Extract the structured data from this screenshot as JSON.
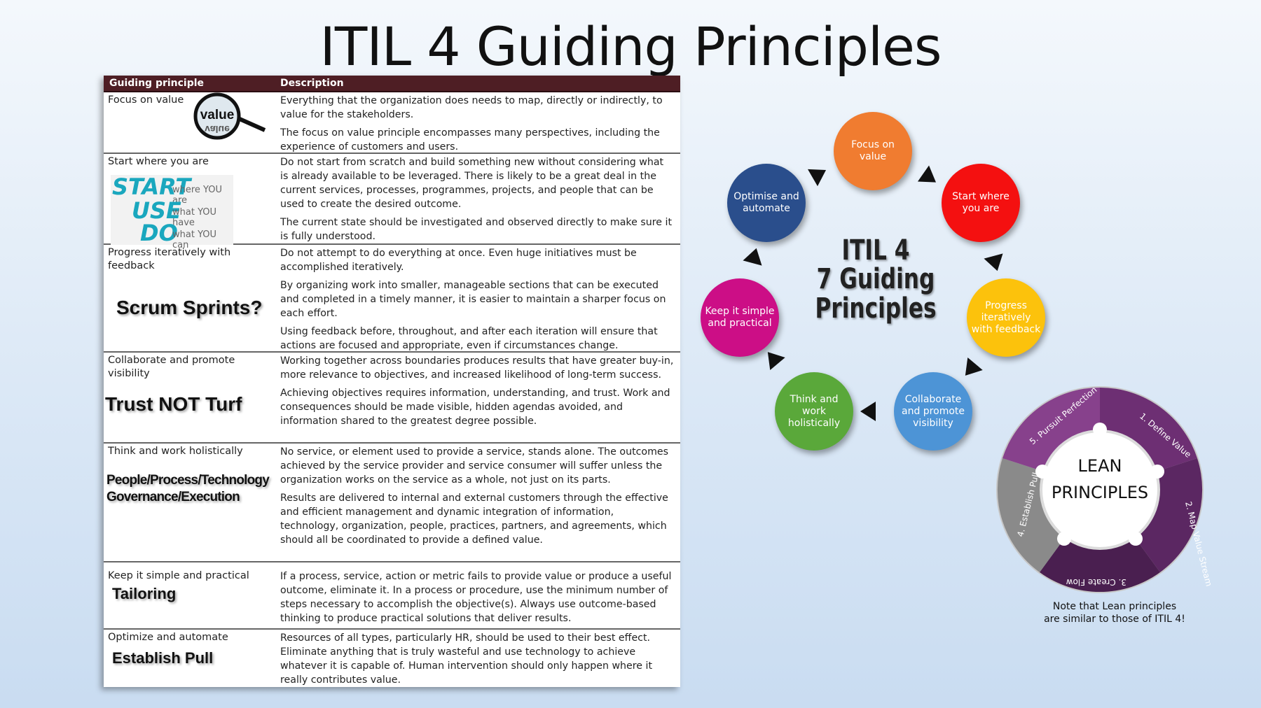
{
  "title": "ITIL 4 Guiding Principles",
  "table": {
    "header": {
      "col1": "Guiding principle",
      "col2": "Description"
    },
    "rows": [
      {
        "principle": "Focus on value",
        "image_text": "value",
        "desc": [
          "Everything that the organization does needs to map, directly or indirectly, to value for the stakeholders.",
          "The focus on value principle encompasses many perspectives, including the experience of customers and users."
        ]
      },
      {
        "principle": "Start where you are",
        "image_lines": [
          {
            "big": "START",
            "small": "where YOU are"
          },
          {
            "big": "USE",
            "small": "what YOU have"
          },
          {
            "big": "DO",
            "small": "what YOU can"
          }
        ],
        "desc": [
          "Do not start from scratch and build something new without considering what is already available to be leveraged. There is likely to be a great deal in the current services, processes, programmes, projects, and people that can be used to create the desired outcome.",
          "The current state should be investigated and observed directly to make sure it is fully understood."
        ]
      },
      {
        "principle": "Progress iteratively with feedback",
        "image_text": "Scrum Sprints?",
        "desc": [
          "Do not attempt to do everything at once. Even huge initiatives must be accomplished iteratively.",
          "By organizing work into smaller, manageable sections that can be executed and completed in a timely manner, it is easier to maintain a sharper focus on each effort.",
          "Using feedback before, throughout, and after each iteration will ensure that actions are focused and appropriate, even if circumstances change."
        ]
      },
      {
        "principle": "Collaborate and promote visibility",
        "image_text": "Trust NOT Turf",
        "desc": [
          "Working together across boundaries produces results that have greater buy-in, more relevance to objectives, and increased likelihood of long-term success.",
          "Achieving objectives requires information, understanding, and trust. Work and consequences should be made visible, hidden agendas avoided, and information shared to the greatest degree possible."
        ]
      },
      {
        "principle": "Think and work holistically",
        "image_text": "People/Process/Technology Governance/Execution",
        "image_lines": [
          "People/Process/Technology",
          "Governance/Execution"
        ],
        "desc": [
          "No service, or element used to provide a service, stands alone. The outcomes achieved by the service provider and service consumer will suffer unless the organization works on the service as a whole, not just on its parts.",
          "Results are delivered to internal and external customers through the effective and efficient management and dynamic integration of information, technology, organization, people, practices, partners, and agreements, which should all be coordinated to provide a defined value."
        ]
      },
      {
        "principle": "Keep it simple and practical",
        "image_text": "Tailoring",
        "desc": [
          "If a process, service, action or metric fails to provide value or produce a useful outcome, eliminate it. In a process or procedure, use the minimum number of steps necessary to accomplish the objective(s). Always use outcome-based thinking to produce practical solutions that deliver results."
        ]
      },
      {
        "principle": "Optimize and automate",
        "image_text": "Establish Pull",
        "desc": [
          "Resources of all types, particularly HR, should be used to their best effect. Eliminate anything that is truly wasteful and use technology to achieve whatever it is capable of. Human intervention should only happen where it really contributes value."
        ]
      }
    ]
  },
  "diagram": {
    "center_line1": "ITIL 4",
    "center_line2": "7 Guiding Principles",
    "circles": [
      {
        "label": "Focus on value",
        "color": "#f07c30"
      },
      {
        "label": "Start where you are",
        "color": "#f41010"
      },
      {
        "label": "Progress iteratively with feedback",
        "color": "#fcc20c"
      },
      {
        "label": "Collaborate and promote visibility",
        "color": "#4d94d6"
      },
      {
        "label": "Think and work holistically",
        "color": "#5aa83a"
      },
      {
        "label": "Keep it simple and practical",
        "color": "#cc0e86"
      },
      {
        "label": "Optimise and automate",
        "color": "#2a4e8c"
      }
    ]
  },
  "lean": {
    "center_line1": "LEAN",
    "center_line2": "PRINCIPLES",
    "segments": [
      "1. Define Value",
      "2. Map Value Stream",
      "3. Create Flow",
      "4. Establish Pull",
      "5. Pursuit Perfection"
    ]
  },
  "note": {
    "line1": "Note that Lean principles",
    "line2": "are similar to those of ITIL 4!"
  }
}
